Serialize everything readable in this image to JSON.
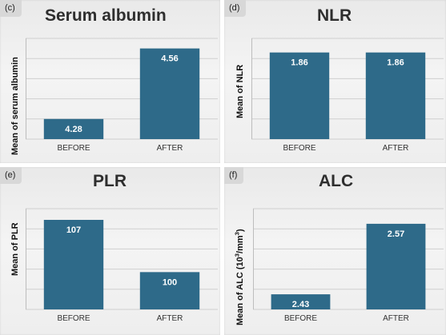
{
  "chart_data": [
    {
      "type": "bar",
      "panel_tag": "(c)",
      "title": "Serum albumin",
      "ylabel": "Mean of serum albumin",
      "categories": [
        "BEFORE",
        "AFTER"
      ],
      "values": [
        4.28,
        4.56
      ],
      "data_labels": [
        "4.28",
        "4.56"
      ],
      "ylim": [
        4.2,
        4.6
      ],
      "grid": true,
      "bar_color": "#2e6a89"
    },
    {
      "type": "bar",
      "panel_tag": "(d)",
      "title": "NLR",
      "ylabel": "Mean of NLR",
      "categories": [
        "BEFORE",
        "AFTER"
      ],
      "values": [
        1.86,
        1.86
      ],
      "data_labels": [
        "1.86",
        "1.86"
      ],
      "ylim": [
        1.0,
        2.0
      ],
      "grid": true,
      "bar_color": "#2e6a89"
    },
    {
      "type": "bar",
      "panel_tag": "(e)",
      "title": "PLR",
      "ylabel": "Mean of PLR",
      "categories": [
        "BEFORE",
        "AFTER"
      ],
      "values": [
        107,
        100
      ],
      "data_labels": [
        "107",
        "100"
      ],
      "ylim": [
        95,
        108.5
      ],
      "grid": true,
      "bar_color": "#2e6a89"
    },
    {
      "type": "bar",
      "panel_tag": "(f)",
      "title": "ALC",
      "ylabel": "Mean of ALC (10",
      "ylabel_sup": "3",
      "ylabel_mid": "/mm",
      "ylabel_sup2": "3",
      "ylabel_end": ")",
      "categories": [
        "BEFORE",
        "AFTER"
      ],
      "values": [
        2.43,
        2.57
      ],
      "data_labels": [
        "2.43",
        "2.57"
      ],
      "ylim": [
        2.4,
        2.6
      ],
      "grid": true,
      "bar_color": "#2e6a89"
    }
  ]
}
